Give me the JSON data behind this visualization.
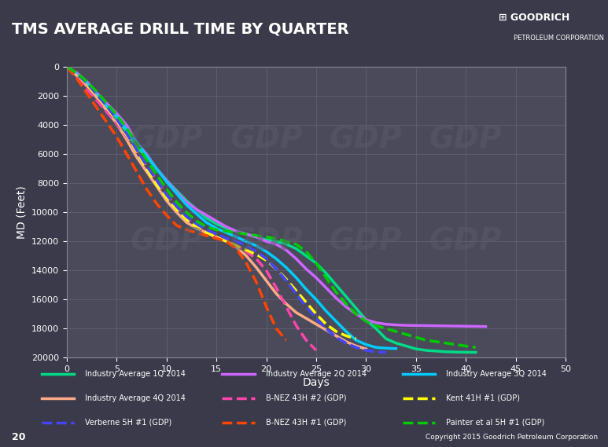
{
  "title": "TMS AVERAGE DRILL TIME BY QUARTER",
  "xlabel": "Days",
  "ylabel": "MD (Feet)",
  "xlim": [
    0,
    50
  ],
  "ylim": [
    20000,
    0
  ],
  "yticks": [
    0,
    2000,
    4000,
    6000,
    8000,
    10000,
    12000,
    14000,
    16000,
    18000,
    20000
  ],
  "xticks": [
    0,
    5,
    10,
    15,
    20,
    25,
    30,
    35,
    40,
    45,
    50
  ],
  "bg_color": "#4a4a5a",
  "plot_bg": "#4a4a5a",
  "title_bg": "#a01010",
  "footer_bg": "#8b0000",
  "grid_color": "#6a6a7a",
  "text_color": "white",
  "legend": [
    {
      "label": "Industry Average 1Q 2014",
      "color": "#00dd88",
      "style": "solid",
      "lw": 2.5
    },
    {
      "label": "Industry Average 2Q 2014",
      "color": "#cc66ff",
      "style": "solid",
      "lw": 2.5
    },
    {
      "label": "Industry Average 3Q 2014",
      "color": "#00ccff",
      "style": "solid",
      "lw": 2.5
    },
    {
      "label": "Industry Average 4Q 2014",
      "color": "#ffaa88",
      "style": "solid",
      "lw": 2.5
    },
    {
      "label": "B-NEZ 43H #2 (GDP)",
      "color": "#ff44aa",
      "style": "dashed",
      "lw": 2.5
    },
    {
      "label": "Kent 41H #1 (GDP)",
      "color": "#ffff00",
      "style": "dashed",
      "lw": 2.5
    },
    {
      "label": "Verberne 5H #1 (GDP)",
      "color": "#4444ff",
      "style": "dashed",
      "lw": 2.5
    },
    {
      "label": "B-NEZ 43H #1 (GDP)",
      "color": "#ff4400",
      "style": "dashed",
      "lw": 2.5
    },
    {
      "label": "Painter et al 5H #1 (GDP)",
      "color": "#00cc00",
      "style": "dashed",
      "lw": 2.5
    }
  ],
  "series": [
    {
      "name": "Industry Average 1Q 2014",
      "color": "#00dd88",
      "style": "solid",
      "lw": 2.5,
      "x": [
        0,
        1,
        2,
        3,
        4,
        5,
        6,
        7,
        8,
        9,
        10,
        11,
        12,
        13,
        14,
        15,
        16,
        17,
        18,
        19,
        20,
        21,
        22,
        23,
        24,
        25,
        26,
        27,
        28,
        29,
        30,
        31,
        32,
        33,
        34,
        35,
        36,
        37,
        38,
        39,
        40,
        41
      ],
      "y": [
        0,
        500,
        1200,
        2000,
        2800,
        3500,
        4500,
        5500,
        6200,
        7000,
        7800,
        8500,
        9200,
        9800,
        10400,
        10800,
        11100,
        11300,
        11500,
        11700,
        11900,
        12000,
        12200,
        12500,
        13000,
        13500,
        14200,
        15000,
        15800,
        16600,
        17400,
        18000,
        18700,
        19000,
        19200,
        19400,
        19500,
        19550,
        19600,
        19620,
        19630,
        19640
      ]
    },
    {
      "name": "Industry Average 2Q 2014",
      "color": "#cc66ff",
      "style": "solid",
      "lw": 2.5,
      "x": [
        0,
        1,
        2,
        3,
        4,
        5,
        6,
        7,
        8,
        9,
        10,
        11,
        12,
        13,
        14,
        15,
        16,
        17,
        18,
        19,
        20,
        21,
        22,
        23,
        24,
        25,
        26,
        27,
        28,
        29,
        30,
        31,
        32,
        33,
        34,
        35,
        36,
        37,
        38,
        39,
        40,
        41,
        42
      ],
      "y": [
        0,
        400,
        1000,
        1800,
        2500,
        3200,
        4000,
        5200,
        6000,
        7000,
        7800,
        8600,
        9300,
        9800,
        10200,
        10600,
        11000,
        11300,
        11500,
        11700,
        12000,
        12200,
        12600,
        13200,
        13900,
        14500,
        15200,
        15900,
        16500,
        17000,
        17400,
        17600,
        17700,
        17750,
        17780,
        17790,
        17800,
        17810,
        17820,
        17830,
        17840,
        17850,
        17860
      ]
    },
    {
      "name": "Industry Average 3Q 2014",
      "color": "#00ccff",
      "style": "solid",
      "lw": 2.5,
      "x": [
        0,
        1,
        2,
        3,
        4,
        5,
        6,
        7,
        8,
        9,
        10,
        11,
        12,
        13,
        14,
        15,
        16,
        17,
        18,
        19,
        20,
        21,
        22,
        23,
        24,
        25,
        26,
        27,
        28,
        29,
        30,
        31,
        32,
        33
      ],
      "y": [
        0,
        500,
        1100,
        1900,
        2700,
        3400,
        4300,
        5200,
        6100,
        7000,
        7900,
        8700,
        9500,
        10100,
        10700,
        11100,
        11400,
        11700,
        12000,
        12300,
        12700,
        13200,
        13800,
        14500,
        15300,
        16000,
        16800,
        17500,
        18200,
        18800,
        19100,
        19300,
        19350,
        19380
      ]
    },
    {
      "name": "Industry Average 4Q 2014",
      "color": "#ffaa88",
      "style": "solid",
      "lw": 2.5,
      "x": [
        0,
        1,
        2,
        3,
        4,
        5,
        6,
        7,
        8,
        9,
        10,
        11,
        12,
        13,
        14,
        15,
        16,
        17,
        18,
        19,
        20,
        21,
        22,
        23,
        24,
        25,
        26,
        27,
        28,
        29,
        30
      ],
      "y": [
        0,
        600,
        1300,
        2100,
        3000,
        3900,
        5000,
        6200,
        7200,
        8200,
        9200,
        10000,
        10700,
        11100,
        11400,
        11700,
        12000,
        12400,
        13000,
        13800,
        14700,
        15600,
        16300,
        16900,
        17300,
        17700,
        18100,
        18500,
        18900,
        19200,
        19400
      ]
    },
    {
      "name": "B-NEZ 43H #2 (GDP)",
      "color": "#ff44aa",
      "style": "dashed",
      "lw": 2.5,
      "x": [
        0,
        1,
        2,
        3,
        4,
        5,
        6,
        7,
        8,
        9,
        10,
        11,
        12,
        13,
        14,
        15,
        16,
        17,
        18,
        19,
        20,
        21,
        22,
        23,
        24,
        25
      ],
      "y": [
        0,
        700,
        1500,
        2300,
        3100,
        3900,
        4800,
        5800,
        6800,
        7800,
        8800,
        9600,
        10400,
        11000,
        11400,
        11700,
        12000,
        12300,
        12700,
        13200,
        14000,
        15200,
        16500,
        17800,
        18800,
        19500
      ]
    },
    {
      "name": "Kent 41H #1 (GDP)",
      "color": "#ffff00",
      "style": "dashed",
      "lw": 2.5,
      "x": [
        0,
        1,
        2,
        3,
        4,
        5,
        6,
        7,
        8,
        9,
        10,
        11,
        12,
        13,
        14,
        15,
        16,
        17,
        18,
        19,
        20,
        21,
        22,
        23,
        24,
        25,
        26,
        27,
        28,
        29
      ],
      "y": [
        0,
        500,
        1200,
        2000,
        2800,
        3700,
        4700,
        5800,
        7000,
        8100,
        9000,
        9800,
        10500,
        11000,
        11400,
        11700,
        12000,
        12300,
        12600,
        12900,
        13300,
        13900,
        14600,
        15400,
        16200,
        17000,
        17700,
        18200,
        18500,
        18700
      ]
    },
    {
      "name": "Verberne 5H #1 (GDP)",
      "color": "#4444ff",
      "style": "dashed",
      "lw": 2.5,
      "x": [
        0,
        1,
        2,
        3,
        4,
        5,
        6,
        7,
        8,
        9,
        10,
        11,
        12,
        13,
        14,
        15,
        16,
        17,
        18,
        19,
        20,
        21,
        22,
        23,
        24,
        25,
        26,
        27,
        28,
        29,
        30,
        31,
        32
      ],
      "y": [
        0,
        500,
        1100,
        1900,
        2700,
        3600,
        4600,
        5700,
        6800,
        7800,
        8800,
        9600,
        10300,
        10800,
        11200,
        11500,
        11800,
        12000,
        12300,
        12700,
        13200,
        13900,
        14700,
        15600,
        16500,
        17300,
        18000,
        18600,
        19000,
        19300,
        19500,
        19600,
        19650
      ]
    },
    {
      "name": "B-NEZ 43H #1 (GDP)",
      "color": "#ff4400",
      "style": "dashed",
      "lw": 2.5,
      "x": [
        0,
        1,
        2,
        3,
        4,
        5,
        6,
        7,
        8,
        9,
        10,
        11,
        12,
        13,
        14,
        15,
        16,
        17,
        18,
        19,
        20,
        21,
        22
      ],
      "y": [
        0,
        800,
        1800,
        2800,
        3800,
        4800,
        6000,
        7200,
        8400,
        9400,
        10200,
        10900,
        11200,
        11400,
        11600,
        11800,
        12000,
        12500,
        13500,
        14800,
        16500,
        18000,
        18800
      ]
    },
    {
      "name": "Painter et al 5H #1 (GDP)",
      "color": "#00cc00",
      "style": "dashed",
      "lw": 2.5,
      "x": [
        0,
        1,
        2,
        3,
        4,
        5,
        6,
        7,
        8,
        9,
        10,
        11,
        12,
        13,
        14,
        15,
        16,
        17,
        18,
        19,
        20,
        21,
        22,
        23,
        24,
        25,
        26,
        27,
        28,
        29,
        30,
        31,
        32,
        33,
        34,
        35,
        36,
        37,
        38,
        39,
        40,
        41
      ],
      "y": [
        0,
        400,
        1000,
        1700,
        2500,
        3300,
        4200,
        5300,
        6400,
        7400,
        8400,
        9300,
        10000,
        10600,
        11000,
        11200,
        11300,
        11400,
        11500,
        11600,
        11700,
        11800,
        12000,
        12200,
        12700,
        13500,
        14500,
        15500,
        16300,
        17000,
        17500,
        17800,
        18000,
        18200,
        18400,
        18600,
        18800,
        18900,
        19000,
        19100,
        19200,
        19300
      ]
    }
  ],
  "footer_text": "20",
  "copyright_text": "Copyright 2015 Goodrich Petroleum Corporation"
}
